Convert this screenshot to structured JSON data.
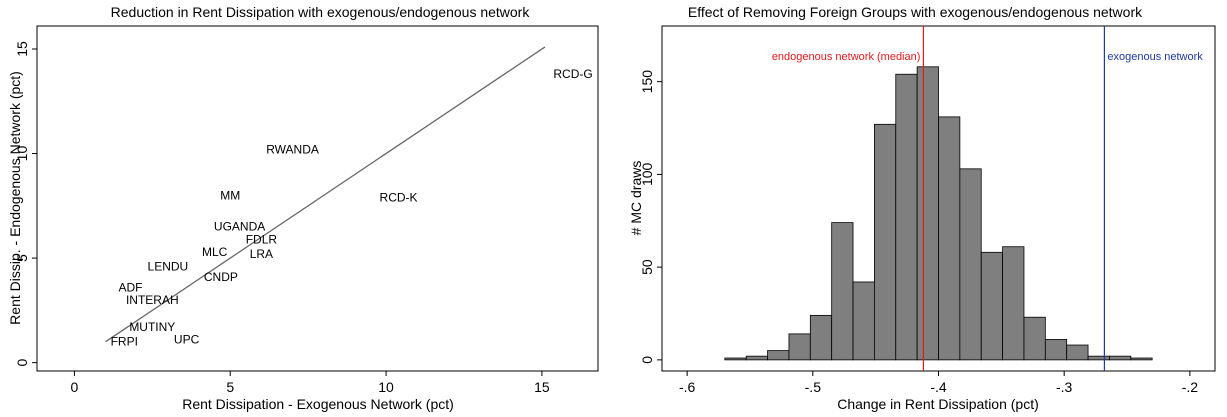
{
  "chart_data": [
    {
      "type": "scatter",
      "title": "Reduction in Rent Dissipation with exogenous/endogenous network",
      "xlabel": "Rent Dissipation - Exogenous Network (pct)",
      "ylabel": "Rent Dissip. - Endogenous Network (pct)",
      "xlim": [
        -1.2,
        16.8
      ],
      "ylim": [
        -0.4,
        16.1
      ],
      "xticks": [
        "0",
        "5",
        "10",
        "15"
      ],
      "yticks": [
        "0",
        "5",
        "10",
        "15"
      ],
      "points": [
        {
          "label": "RCD-G",
          "x": 16.0,
          "y": 13.8
        },
        {
          "label": "RWANDA",
          "x": 7.0,
          "y": 10.2
        },
        {
          "label": "RCD-K",
          "x": 10.4,
          "y": 7.9
        },
        {
          "label": "MM",
          "x": 5.0,
          "y": 8.0
        },
        {
          "label": "UGANDA",
          "x": 5.3,
          "y": 6.5
        },
        {
          "label": "FDLR",
          "x": 6.0,
          "y": 5.9
        },
        {
          "label": "MLC",
          "x": 4.5,
          "y": 5.3
        },
        {
          "label": "LRA",
          "x": 6.0,
          "y": 5.2
        },
        {
          "label": "LENDU",
          "x": 3.0,
          "y": 4.6
        },
        {
          "label": "CNDP",
          "x": 4.7,
          "y": 4.1
        },
        {
          "label": "ADF",
          "x": 1.8,
          "y": 3.6
        },
        {
          "label": "INTERAH",
          "x": 2.5,
          "y": 3.0
        },
        {
          "label": "MUTINY",
          "x": 2.5,
          "y": 1.7
        },
        {
          "label": "UPC",
          "x": 3.6,
          "y": 1.1
        },
        {
          "label": "FRPI",
          "x": 1.6,
          "y": 1.0
        }
      ],
      "fit_line": {
        "x": [
          1.0,
          15.1
        ],
        "y": [
          1.0,
          15.1
        ]
      }
    },
    {
      "type": "bar",
      "title": "Effect of Removing Foreign Groups with exogenous/endogenous network",
      "xlabel": "Change in Rent Dissipation (pct)",
      "ylabel": "# MC draws",
      "xlim": [
        -0.62,
        -0.18
      ],
      "ylim": [
        -6,
        180
      ],
      "xticks": [
        "-.6",
        "-.5",
        "-.4",
        "-.3",
        "-.2"
      ],
      "xtick_values": [
        -0.6,
        -0.5,
        -0.4,
        -0.3,
        -0.2
      ],
      "yticks": [
        "0",
        "50",
        "100",
        "150"
      ],
      "bin_edges": [
        -0.57,
        -0.553,
        -0.536,
        -0.519,
        -0.502,
        -0.485,
        -0.468,
        -0.451,
        -0.434,
        -0.417,
        -0.4,
        -0.383,
        -0.366,
        -0.349,
        -0.332,
        -0.315,
        -0.298,
        -0.281,
        -0.264,
        -0.247,
        -0.23
      ],
      "values": [
        1,
        2,
        5,
        14,
        24,
        74,
        42,
        127,
        154,
        158,
        131,
        103,
        58,
        61,
        23,
        11,
        8,
        2,
        2,
        1
      ],
      "vlines": [
        {
          "label": "endogenous network (median)",
          "x": -0.412,
          "color": "#e41a1c"
        },
        {
          "label": "exogenous network",
          "x": -0.268,
          "color": "#1f3a9e"
        }
      ]
    }
  ]
}
